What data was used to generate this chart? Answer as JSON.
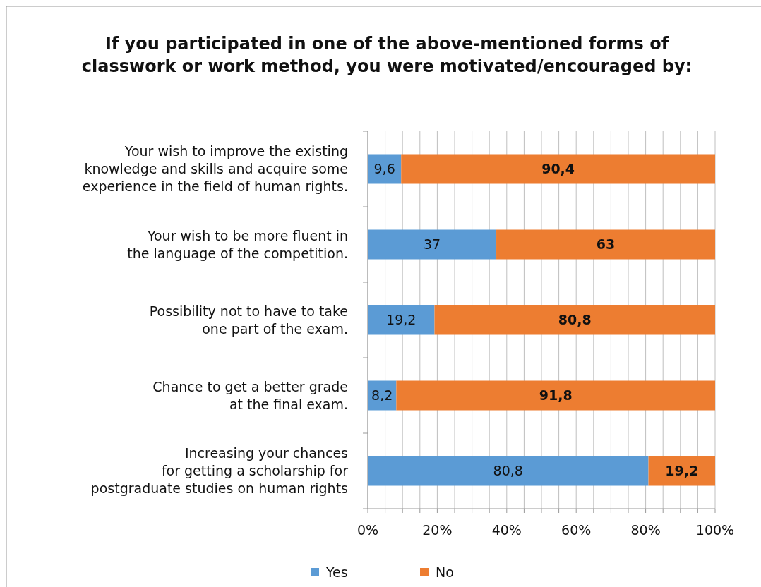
{
  "chart_data": {
    "type": "bar",
    "orientation": "horizontal",
    "stacked": true,
    "title": "If you participated in one of the above-mentioned forms of\nclasswork or work method, you were motivated/encouraged by:",
    "categories": [
      "Your wish to improve the existing\nknowledge and skills and acquire some\nexperience in the field of human rights.",
      "Your wish to be more fluent in\nthe language of the competition.",
      "Possibility not to have to take\none part of the exam.",
      "Chance to get a better grade\nat the final exam.",
      "Increasing your chances\nfor getting a scholarship for\npostgraduate studies on human rights"
    ],
    "series": [
      {
        "name": "Yes",
        "color": "#5b9bd5",
        "values": [
          9.6,
          37,
          19.2,
          8.2,
          80.8
        ],
        "value_labels": [
          "9,6",
          "37",
          "19,2",
          "8,2",
          "80,8"
        ]
      },
      {
        "name": "No",
        "color": "#ed7d31",
        "values": [
          90.4,
          63,
          80.8,
          91.8,
          19.2
        ],
        "value_labels": [
          "90,4",
          "63",
          "80,8",
          "91,8",
          "19,2"
        ]
      }
    ],
    "xlim": [
      0,
      100
    ],
    "xticks": [
      {
        "value": 0,
        "label": "0%"
      },
      {
        "value": 5,
        "label": null
      },
      {
        "value": 10,
        "label": null
      },
      {
        "value": 15,
        "label": null
      },
      {
        "value": 20,
        "label": "20%"
      },
      {
        "value": 25,
        "label": null
      },
      {
        "value": 30,
        "label": null
      },
      {
        "value": 35,
        "label": null
      },
      {
        "value": 40,
        "label": "40%"
      },
      {
        "value": 45,
        "label": null
      },
      {
        "value": 50,
        "label": null
      },
      {
        "value": 55,
        "label": null
      },
      {
        "value": 60,
        "label": "60%"
      },
      {
        "value": 65,
        "label": null
      },
      {
        "value": 70,
        "label": null
      },
      {
        "value": 75,
        "label": null
      },
      {
        "value": 80,
        "label": "80%"
      },
      {
        "value": 85,
        "label": null
      },
      {
        "value": 90,
        "label": null
      },
      {
        "value": 95,
        "label": null
      },
      {
        "value": 100,
        "label": "100%"
      }
    ],
    "grid": "x",
    "legend": "bottom"
  }
}
